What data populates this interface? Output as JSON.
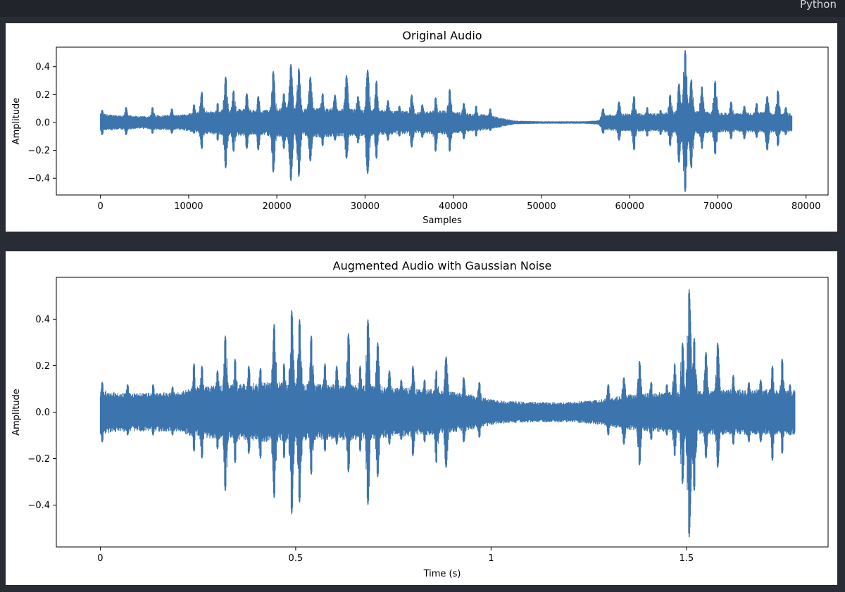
{
  "header": {
    "language_label": "Python"
  },
  "chart_data": [
    {
      "type": "line",
      "title": "Original Audio",
      "xlabel": "Samples",
      "ylabel": "Amplitude",
      "xlim": [
        -5000,
        82500
      ],
      "ylim": [
        -0.52,
        0.54
      ],
      "xticks": [
        0,
        10000,
        20000,
        30000,
        40000,
        50000,
        60000,
        70000,
        80000
      ],
      "xtick_labels": [
        "0",
        "10000",
        "20000",
        "30000",
        "40000",
        "50000",
        "60000",
        "70000",
        "80000"
      ],
      "yticks": [
        0.4,
        0.2,
        0.0,
        -0.2,
        -0.4
      ],
      "ytick_labels": [
        "0.4",
        "0.2",
        "0.0",
        "−0.2",
        "−0.4"
      ],
      "grid": false,
      "color": "#3c74ad",
      "x_end": 78400,
      "envelope_base": [
        [
          0,
          0.06
        ],
        [
          1500,
          0.05
        ],
        [
          3000,
          0.05
        ],
        [
          4500,
          0.04
        ],
        [
          6500,
          0.05
        ],
        [
          9000,
          0.05
        ],
        [
          11000,
          0.07
        ],
        [
          13000,
          0.08
        ],
        [
          16000,
          0.09
        ],
        [
          18000,
          0.08
        ],
        [
          21000,
          0.1
        ],
        [
          23000,
          0.09
        ],
        [
          25000,
          0.1
        ],
        [
          27000,
          0.09
        ],
        [
          30000,
          0.09
        ],
        [
          33000,
          0.08
        ],
        [
          36000,
          0.07
        ],
        [
          39000,
          0.08
        ],
        [
          42000,
          0.06
        ],
        [
          44000,
          0.05
        ],
        [
          45500,
          0.03
        ],
        [
          47000,
          0.012
        ],
        [
          50000,
          0.008
        ],
        [
          55000,
          0.008
        ],
        [
          56500,
          0.015
        ],
        [
          57000,
          0.05
        ],
        [
          60000,
          0.06
        ],
        [
          63000,
          0.06
        ],
        [
          66000,
          0.08
        ],
        [
          69000,
          0.07
        ],
        [
          72000,
          0.06
        ],
        [
          75000,
          0.07
        ],
        [
          78400,
          0.06
        ]
      ],
      "peaks": [
        [
          200,
          0.09,
          -0.09
        ],
        [
          2900,
          0.11,
          -0.09
        ],
        [
          5900,
          0.11,
          -0.08
        ],
        [
          8100,
          0.1,
          -0.08
        ],
        [
          10600,
          0.13,
          -0.08
        ],
        [
          11500,
          0.22,
          -0.19
        ],
        [
          13300,
          0.14,
          -0.13
        ],
        [
          14200,
          0.33,
          -0.33
        ],
        [
          15100,
          0.23,
          -0.21
        ],
        [
          16600,
          0.21,
          -0.19
        ],
        [
          17900,
          0.19,
          -0.2
        ],
        [
          19600,
          0.37,
          -0.36
        ],
        [
          20800,
          0.21,
          -0.19
        ],
        [
          21600,
          0.42,
          -0.42
        ],
        [
          22500,
          0.39,
          -0.39
        ],
        [
          23800,
          0.33,
          -0.28
        ],
        [
          25200,
          0.21,
          -0.17
        ],
        [
          26600,
          0.2,
          -0.13
        ],
        [
          27900,
          0.34,
          -0.26
        ],
        [
          29200,
          0.19,
          -0.15
        ],
        [
          30300,
          0.38,
          -0.37
        ],
        [
          31300,
          0.3,
          -0.26
        ],
        [
          32600,
          0.16,
          -0.13
        ],
        [
          33900,
          0.12,
          -0.1
        ],
        [
          35300,
          0.2,
          -0.18
        ],
        [
          36500,
          0.13,
          -0.11
        ],
        [
          38000,
          0.18,
          -0.21
        ],
        [
          39600,
          0.24,
          -0.21
        ],
        [
          41200,
          0.14,
          -0.12
        ],
        [
          42600,
          0.12,
          -0.1
        ],
        [
          44200,
          0.1,
          -0.06
        ],
        [
          57000,
          0.1,
          -0.08
        ],
        [
          58800,
          0.15,
          -0.13
        ],
        [
          60500,
          0.19,
          -0.2
        ],
        [
          62000,
          0.11,
          -0.1
        ],
        [
          63500,
          0.09,
          -0.09
        ],
        [
          64600,
          0.2,
          -0.17
        ],
        [
          65600,
          0.28,
          -0.29
        ],
        [
          66300,
          0.52,
          -0.5
        ],
        [
          67000,
          0.31,
          -0.33
        ],
        [
          68200,
          0.26,
          -0.19
        ],
        [
          69700,
          0.3,
          -0.23
        ],
        [
          71500,
          0.15,
          -0.12
        ],
        [
          73000,
          0.12,
          -0.12
        ],
        [
          74400,
          0.14,
          -0.11
        ],
        [
          75600,
          0.19,
          -0.2
        ],
        [
          76800,
          0.23,
          -0.17
        ],
        [
          77700,
          0.11,
          -0.09
        ]
      ]
    },
    {
      "type": "line",
      "title": "Augmented Audio with Gaussian Noise",
      "xlabel": "Time (s)",
      "ylabel": "Amplitude",
      "xlim": [
        -0.1125,
        1.8625
      ],
      "ylim": [
        -0.58,
        0.58
      ],
      "xticks": [
        0,
        0.5,
        1,
        1.5
      ],
      "xtick_labels": [
        "0",
        "0.5",
        "1",
        "1.5"
      ],
      "yticks": [
        0.4,
        0.2,
        0.0,
        -0.2,
        -0.4
      ],
      "ytick_labels": [
        "0.4",
        "0.2",
        "0.0",
        "−0.2",
        "−0.4"
      ],
      "grid": false,
      "color": "#3c74ad",
      "x_end": 1.778,
      "envelope_base": [
        [
          0,
          0.09
        ],
        [
          0.03,
          0.08
        ],
        [
          0.1,
          0.075
        ],
        [
          0.2,
          0.08
        ],
        [
          0.25,
          0.1
        ],
        [
          0.35,
          0.11
        ],
        [
          0.45,
          0.12
        ],
        [
          0.55,
          0.11
        ],
        [
          0.65,
          0.11
        ],
        [
          0.75,
          0.1
        ],
        [
          0.85,
          0.09
        ],
        [
          0.95,
          0.07
        ],
        [
          1.02,
          0.045
        ],
        [
          1.1,
          0.04
        ],
        [
          1.2,
          0.04
        ],
        [
          1.28,
          0.05
        ],
        [
          1.35,
          0.07
        ],
        [
          1.45,
          0.08
        ],
        [
          1.55,
          0.09
        ],
        [
          1.65,
          0.09
        ],
        [
          1.778,
          0.09
        ]
      ],
      "peaks": [
        [
          0.005,
          0.13,
          -0.13
        ],
        [
          0.07,
          0.12,
          -0.1
        ],
        [
          0.135,
          0.12,
          -0.1
        ],
        [
          0.185,
          0.11,
          -0.1
        ],
        [
          0.24,
          0.21,
          -0.17
        ],
        [
          0.26,
          0.2,
          -0.2
        ],
        [
          0.3,
          0.18,
          -0.16
        ],
        [
          0.32,
          0.33,
          -0.34
        ],
        [
          0.345,
          0.23,
          -0.22
        ],
        [
          0.38,
          0.2,
          -0.18
        ],
        [
          0.41,
          0.19,
          -0.2
        ],
        [
          0.445,
          0.38,
          -0.37
        ],
        [
          0.47,
          0.21,
          -0.2
        ],
        [
          0.49,
          0.44,
          -0.44
        ],
        [
          0.51,
          0.4,
          -0.39
        ],
        [
          0.54,
          0.33,
          -0.27
        ],
        [
          0.575,
          0.21,
          -0.17
        ],
        [
          0.605,
          0.2,
          -0.14
        ],
        [
          0.635,
          0.34,
          -0.26
        ],
        [
          0.665,
          0.2,
          -0.17
        ],
        [
          0.685,
          0.4,
          -0.4
        ],
        [
          0.71,
          0.3,
          -0.28
        ],
        [
          0.74,
          0.18,
          -0.14
        ],
        [
          0.77,
          0.14,
          -0.12
        ],
        [
          0.8,
          0.2,
          -0.19
        ],
        [
          0.83,
          0.14,
          -0.13
        ],
        [
          0.86,
          0.18,
          -0.22
        ],
        [
          0.885,
          0.24,
          -0.24
        ],
        [
          0.93,
          0.15,
          -0.13
        ],
        [
          0.97,
          0.13,
          -0.11
        ],
        [
          1.3,
          0.12,
          -0.1
        ],
        [
          1.34,
          0.15,
          -0.14
        ],
        [
          1.38,
          0.22,
          -0.23
        ],
        [
          1.41,
          0.13,
          -0.12
        ],
        [
          1.45,
          0.12,
          -0.1
        ],
        [
          1.47,
          0.21,
          -0.19
        ],
        [
          1.49,
          0.3,
          -0.31
        ],
        [
          1.507,
          0.53,
          -0.54
        ],
        [
          1.52,
          0.32,
          -0.34
        ],
        [
          1.55,
          0.26,
          -0.2
        ],
        [
          1.58,
          0.3,
          -0.24
        ],
        [
          1.62,
          0.16,
          -0.14
        ],
        [
          1.66,
          0.13,
          -0.13
        ],
        [
          1.69,
          0.14,
          -0.13
        ],
        [
          1.72,
          0.2,
          -0.21
        ],
        [
          1.745,
          0.23,
          -0.18
        ],
        [
          1.765,
          0.12,
          -0.1
        ]
      ]
    }
  ]
}
